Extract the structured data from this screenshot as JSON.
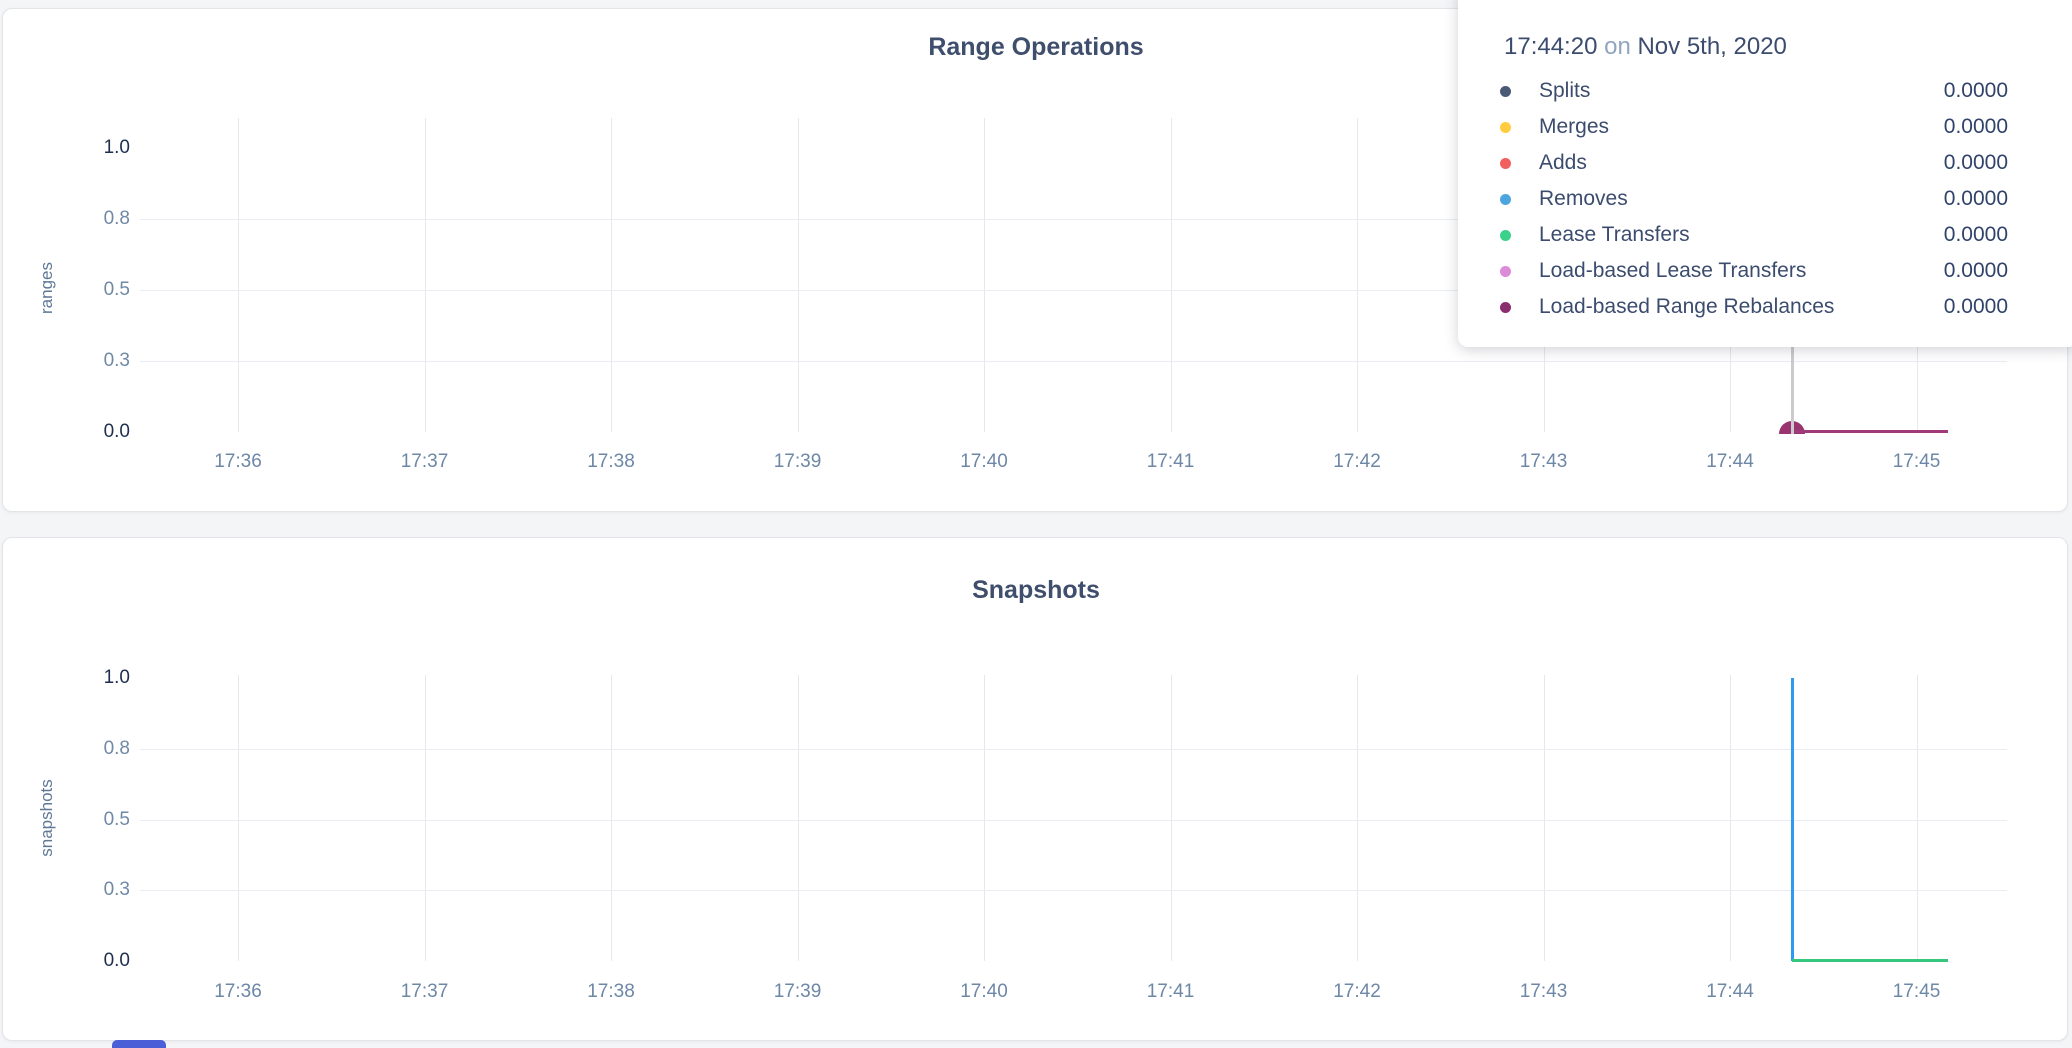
{
  "tooltip": {
    "time": "17:44:20",
    "on_word": "on",
    "date": "Nov 5th, 2020",
    "rows": [
      {
        "label": "Splits",
        "value": "0.0000",
        "color": "#4a5a75"
      },
      {
        "label": "Merges",
        "value": "0.0000",
        "color": "#ffcd3f"
      },
      {
        "label": "Adds",
        "value": "0.0000",
        "color": "#f1605f"
      },
      {
        "label": "Removes",
        "value": "0.0000",
        "color": "#4da5e0"
      },
      {
        "label": "Lease Transfers",
        "value": "0.0000",
        "color": "#3bd18a"
      },
      {
        "label": "Load-based Lease Transfers",
        "value": "0.0000",
        "color": "#dd8ad9"
      },
      {
        "label": "Load-based Range Rebalances",
        "value": "0.0000",
        "color": "#8b2e6e"
      }
    ]
  },
  "chart_data": [
    {
      "type": "line",
      "title": "Range Operations",
      "ylabel": "ranges",
      "ylim": [
        0,
        1
      ],
      "x_ticks": [
        "17:36",
        "17:37",
        "17:38",
        "17:39",
        "17:40",
        "17:41",
        "17:42",
        "17:43",
        "17:44",
        "17:45"
      ],
      "y_ticks": [
        {
          "label": "1.0",
          "value": 1.0,
          "strong": true
        },
        {
          "label": "0.8",
          "value": 0.75,
          "strong": false
        },
        {
          "label": "0.5",
          "value": 0.5,
          "strong": false
        },
        {
          "label": "0.3",
          "value": 0.25,
          "strong": false
        },
        {
          "label": "0.0",
          "value": 0.0,
          "strong": true
        }
      ],
      "grid_y": [
        0.25,
        0.5,
        0.75
      ],
      "hover_time": "17:44:20",
      "series": [
        {
          "name": "Splits",
          "color": "#4a5a75",
          "value_at_hover": 0
        },
        {
          "name": "Merges",
          "color": "#ffcd3f",
          "value_at_hover": 0
        },
        {
          "name": "Adds",
          "color": "#f1605f",
          "value_at_hover": 0
        },
        {
          "name": "Removes",
          "color": "#4da5e0",
          "value_at_hover": 0
        },
        {
          "name": "Lease Transfers",
          "color": "#3bd18a",
          "value_at_hover": 0
        },
        {
          "name": "Load-based Lease Transfers",
          "color": "#dd8ad9",
          "value_at_hover": 0
        },
        {
          "name": "Load-based Range Rebalances",
          "color": "#8b2e6e",
          "value_at_hover": 0
        }
      ],
      "marks": [
        {
          "mark": "point",
          "color": "#993471",
          "x_min": 8.33,
          "y": 0
        },
        {
          "mark": "line",
          "color": "#a13a78",
          "x_from_min": 8.33,
          "x_to_min": 9.17,
          "y": 0
        },
        {
          "mark": "crosshair",
          "x_min": 8.33
        }
      ]
    },
    {
      "type": "line",
      "title": "Snapshots",
      "ylabel": "snapshots",
      "ylim": [
        0,
        1
      ],
      "x_ticks": [
        "17:36",
        "17:37",
        "17:38",
        "17:39",
        "17:40",
        "17:41",
        "17:42",
        "17:43",
        "17:44",
        "17:45"
      ],
      "y_ticks": [
        {
          "label": "1.0",
          "value": 1.0,
          "strong": true
        },
        {
          "label": "0.8",
          "value": 0.75,
          "strong": false
        },
        {
          "label": "0.5",
          "value": 0.5,
          "strong": false
        },
        {
          "label": "0.3",
          "value": 0.25,
          "strong": false
        },
        {
          "label": "0.0",
          "value": 0.0,
          "strong": true
        }
      ],
      "grid_y": [
        0.25,
        0.5,
        0.75
      ],
      "marks": [
        {
          "mark": "vline",
          "color": "#2e9bf2",
          "x_min": 8.33,
          "y_from": 0,
          "y_to": 1
        },
        {
          "mark": "line",
          "color": "#36c77e",
          "x_from_min": 8.33,
          "x_to_min": 9.17,
          "y": 0
        }
      ]
    }
  ],
  "footer": {
    "indicator_color": "#4a5ed8"
  }
}
